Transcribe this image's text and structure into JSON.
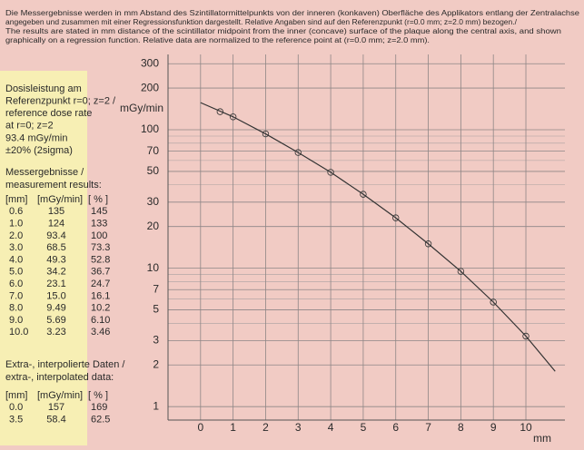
{
  "header": {
    "lines": [
      "Die Messergebnisse werden in mm Abstand des Szintillatormittelpunkts von der inneren (konkaven) Oberfläche des Applikators entlang der Zentralachse",
      "angegeben und zusammen mit einer Regressionsfunktion dargestellt. Relative Angaben sind auf den Referenzpunkt (r=0.0 mm; z=2.0 mm) bezogen./",
      "The results are stated in mm distance of the scintillator midpoint from the inner (concave) surface of the plaque along the central axis, and shown",
      "graphically on a regression function. Relative data are normalized to the reference point at (r=0.0 mm; z=2.0 mm)."
    ]
  },
  "panel": {
    "dose": [
      "Dosisleistung am",
      "Referenzpunkt r=0; z=2 /",
      "reference dose rate",
      "at r=0; z=2",
      "93.4 mGy/min",
      "±20% (2sigma)"
    ],
    "measured_title": [
      "Messergebnisse /",
      "measurement results:"
    ],
    "measured_table": {
      "columns": [
        "[mm]",
        "[mGy/min]",
        "[ % ]"
      ],
      "rows": [
        [
          "0.6",
          "135",
          "145"
        ],
        [
          "1.0",
          "124",
          "133"
        ],
        [
          "2.0",
          "93.4",
          "100"
        ],
        [
          "3.0",
          "68.5",
          "73.3"
        ],
        [
          "4.0",
          "49.3",
          "52.8"
        ],
        [
          "5.0",
          "34.2",
          "36.7"
        ],
        [
          "6.0",
          "23.1",
          "24.7"
        ],
        [
          "7.0",
          "15.0",
          "16.1"
        ],
        [
          "8.0",
          "9.49",
          "10.2"
        ],
        [
          "9.0",
          "5.69",
          "6.10"
        ],
        [
          "10.0",
          "3.23",
          "3.46"
        ]
      ]
    },
    "extra_title": [
      "Extra-, interpolierte Daten /",
      "extra-, interpolated data:"
    ],
    "extra_table": {
      "columns": [
        "[mm]",
        "[mGy/min]",
        "[ % ]"
      ],
      "rows": [
        [
          "0.0",
          "157",
          "169"
        ],
        [
          "3.5",
          "58.4",
          "62.5"
        ]
      ]
    }
  },
  "chart_data": {
    "type": "line",
    "ylabel": "mGy/min",
    "xlabel": "mm",
    "xlim": [
      -1,
      11.2
    ],
    "xticks": [
      0,
      1,
      2,
      3,
      4,
      5,
      6,
      7,
      8,
      9,
      10
    ],
    "ylim": [
      0.8,
      350
    ],
    "log_y": true,
    "grid": true,
    "yticks": [
      1,
      2,
      3,
      5,
      7,
      10,
      20,
      30,
      50,
      70,
      100,
      200,
      300
    ],
    "yminor": [
      4,
      6,
      8,
      9,
      40,
      60,
      80,
      90,
      400
    ],
    "color": "#333333",
    "x": [
      0,
      1,
      2,
      3,
      4,
      5,
      6,
      7,
      8,
      9,
      10,
      10.9
    ],
    "values": [
      157,
      124,
      93.4,
      68.5,
      49.3,
      34.2,
      23.1,
      15.0,
      9.49,
      5.69,
      3.23,
      1.8
    ],
    "points": {
      "x": [
        0.6,
        1.0,
        2.0,
        3.0,
        4.0,
        5.0,
        6.0,
        7.0,
        8.0,
        9.0,
        10.0
      ],
      "values": [
        135,
        124,
        93.4,
        68.5,
        49.3,
        34.2,
        23.1,
        15.0,
        9.49,
        5.69,
        3.23
      ]
    }
  }
}
